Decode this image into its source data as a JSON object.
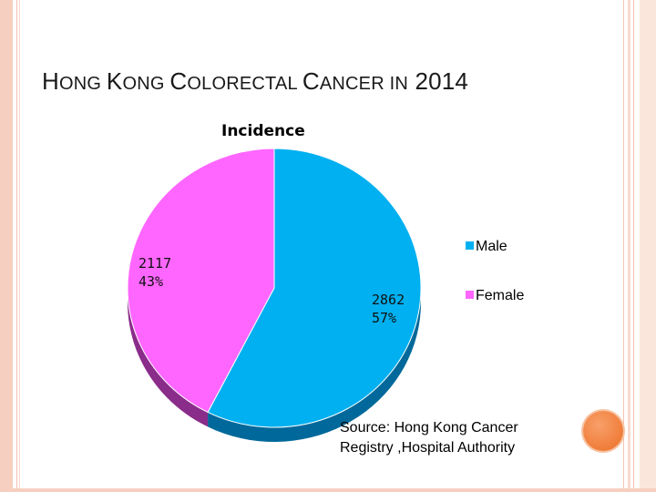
{
  "slide": {
    "title_parts": [
      {
        "text": "H",
        "size": "big"
      },
      {
        "text": "ONG ",
        "size": "small"
      },
      {
        "text": "K",
        "size": "big"
      },
      {
        "text": "ONG ",
        "size": "small"
      },
      {
        "text": "C",
        "size": "big"
      },
      {
        "text": "OLORECTAL ",
        "size": "small"
      },
      {
        "text": "C",
        "size": "big"
      },
      {
        "text": "ANCER ",
        "size": "small"
      },
      {
        "text": "IN",
        "size": "small"
      },
      {
        "text": " 2014",
        "size": "big"
      }
    ],
    "source_line1": "Source:  Hong Kong Cancer",
    "source_line2": "Registry ,Hospital Authority"
  },
  "chart_data": {
    "type": "pie",
    "title": "Incidence",
    "categories": [
      "Male",
      "Female"
    ],
    "values": [
      2862,
      2117
    ],
    "percents": [
      "57%",
      "43%"
    ],
    "labels": [
      {
        "value": "2862",
        "percent": "57%"
      },
      {
        "value": "2117",
        "percent": "43%"
      }
    ],
    "colors": [
      "#00b0f0",
      "#ff66ff"
    ],
    "side_colors": [
      "#00689a",
      "#8a2c8a"
    ],
    "legend_placement": "right",
    "legend": [
      {
        "label": "Male",
        "color": "#00b0f0"
      },
      {
        "label": "Female",
        "color": "#ff66ff"
      }
    ]
  }
}
